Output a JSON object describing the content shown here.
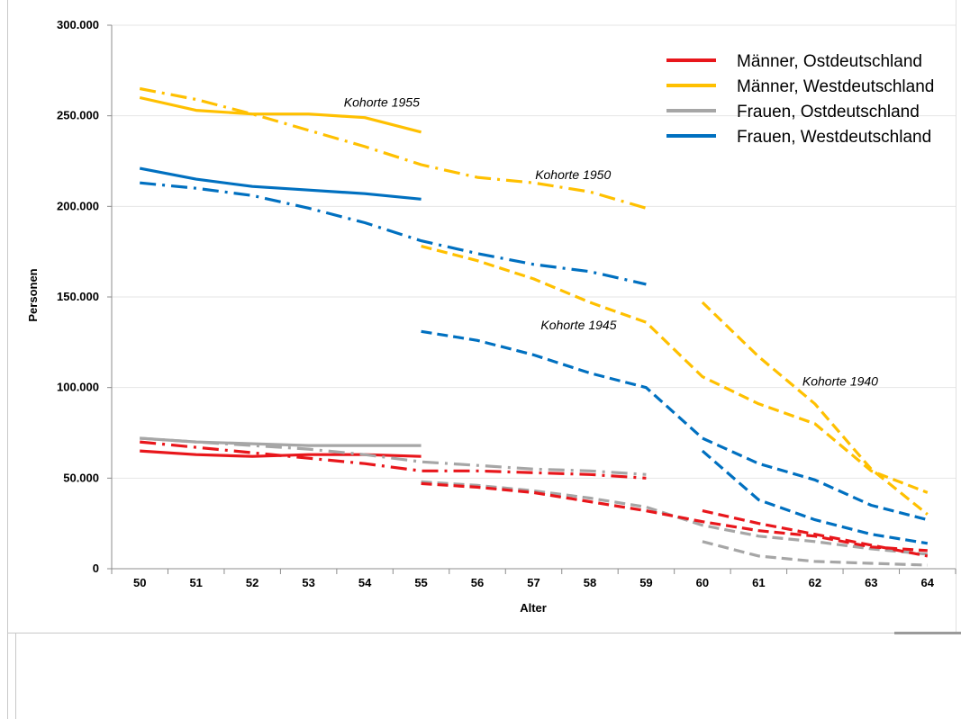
{
  "chart_data": {
    "type": "line",
    "title": "",
    "xlabel": "Alter",
    "ylabel": "Personen",
    "xlim": [
      50,
      64
    ],
    "ylim": [
      0,
      300000
    ],
    "categories": [
      50,
      51,
      52,
      53,
      54,
      55,
      56,
      57,
      58,
      59,
      60,
      61,
      62,
      63,
      64
    ],
    "y_ticks": [
      0,
      50000,
      100000,
      150000,
      200000,
      250000,
      300000
    ],
    "y_tick_labels": [
      "0",
      "50.000",
      "100.000",
      "150.000",
      "200.000",
      "250.000",
      "300.000"
    ],
    "grid": "horizontal",
    "legend_position": "top-right",
    "legend": [
      {
        "label": "Männer, Ostdeutschland",
        "color": "#e8161b"
      },
      {
        "label": "Männer, Westdeutschland",
        "color": "#ffc000"
      },
      {
        "label": "Frauen, Ostdeutschland",
        "color": "#a6a6a6"
      },
      {
        "label": "Frauen, Westdeutschland",
        "color": "#0070c0"
      }
    ],
    "annotations": [
      {
        "text": "Kohorte 1955",
        "x": 54.3,
        "y": 255000
      },
      {
        "text": "Kohorte 1950",
        "x": 57.7,
        "y": 215000
      },
      {
        "text": "Kohorte 1945",
        "x": 57.8,
        "y": 132000
      },
      {
        "text": "Kohorte 1940",
        "x": 62.45,
        "y": 101000
      }
    ],
    "series": [
      {
        "cohort": "Kohorte 1955",
        "group": "Männer, Westdeutschland",
        "color": "#ffc000",
        "dash": "solid",
        "x": [
          50,
          51,
          52,
          53,
          54,
          55
        ],
        "values": [
          260000,
          253000,
          251000,
          251000,
          249000,
          241000
        ]
      },
      {
        "cohort": "Kohorte 1955",
        "group": "Frauen, Westdeutschland",
        "color": "#0070c0",
        "dash": "solid",
        "x": [
          50,
          51,
          52,
          53,
          54,
          55
        ],
        "values": [
          221000,
          215000,
          211000,
          209000,
          207000,
          204000
        ]
      },
      {
        "cohort": "Kohorte 1955",
        "group": "Frauen, Ostdeutschland",
        "color": "#a6a6a6",
        "dash": "solid",
        "x": [
          50,
          51,
          52,
          53,
          54,
          55
        ],
        "values": [
          72000,
          70000,
          69000,
          68000,
          68000,
          68000
        ]
      },
      {
        "cohort": "Kohorte 1955",
        "group": "Männer, Ostdeutschland",
        "color": "#e8161b",
        "dash": "solid",
        "x": [
          50,
          51,
          52,
          53,
          54,
          55
        ],
        "values": [
          65000,
          63000,
          62000,
          63000,
          63000,
          62000
        ]
      },
      {
        "cohort": "Kohorte 1950",
        "group": "Männer, Westdeutschland",
        "color": "#ffc000",
        "dash": "dashdot",
        "x": [
          50,
          51,
          52,
          53,
          54,
          55,
          56,
          57,
          58,
          59
        ],
        "values": [
          265000,
          259000,
          251000,
          242000,
          233000,
          223000,
          216000,
          213000,
          208000,
          199000
        ]
      },
      {
        "cohort": "Kohorte 1950",
        "group": "Frauen, Westdeutschland",
        "color": "#0070c0",
        "dash": "dashdot",
        "x": [
          50,
          51,
          52,
          53,
          54,
          55,
          56,
          57,
          58,
          59
        ],
        "values": [
          213000,
          210000,
          206000,
          199000,
          191000,
          181000,
          174000,
          168000,
          164000,
          157000
        ]
      },
      {
        "cohort": "Kohorte 1950",
        "group": "Frauen, Ostdeutschland",
        "color": "#a6a6a6",
        "dash": "dashdot",
        "x": [
          50,
          51,
          52,
          53,
          54,
          55,
          56,
          57,
          58,
          59
        ],
        "values": [
          72000,
          70000,
          68000,
          66000,
          63000,
          59000,
          57000,
          55000,
          54000,
          52000
        ]
      },
      {
        "cohort": "Kohorte 1950",
        "group": "Männer, Ostdeutschland",
        "color": "#e8161b",
        "dash": "dashdot",
        "x": [
          50,
          51,
          52,
          53,
          54,
          55,
          56,
          57,
          58,
          59
        ],
        "values": [
          70000,
          67000,
          64000,
          61000,
          58000,
          54000,
          54000,
          53000,
          52000,
          50000
        ]
      },
      {
        "cohort": "Kohorte 1945",
        "group": "Männer, Westdeutschland",
        "color": "#ffc000",
        "dash": "dashed",
        "x": [
          55,
          56,
          57,
          58,
          59,
          60,
          61,
          62,
          63,
          64
        ],
        "values": [
          178000,
          170000,
          160000,
          147000,
          136000,
          106000,
          91000,
          80000,
          54000,
          42000
        ]
      },
      {
        "cohort": "Kohorte 1945",
        "group": "Frauen, Westdeutschland",
        "color": "#0070c0",
        "dash": "dashed",
        "x": [
          55,
          56,
          57,
          58,
          59,
          60,
          61,
          62,
          63,
          64
        ],
        "values": [
          131000,
          126000,
          118000,
          108000,
          100000,
          72000,
          58000,
          49000,
          35000,
          27000
        ]
      },
      {
        "cohort": "Kohorte 1945",
        "group": "Frauen, Ostdeutschland",
        "color": "#a6a6a6",
        "dash": "dashed",
        "x": [
          55,
          56,
          57,
          58,
          59,
          60,
          61,
          62,
          63,
          64
        ],
        "values": [
          48000,
          46000,
          43000,
          39000,
          34000,
          24000,
          18000,
          15000,
          11000,
          8000
        ]
      },
      {
        "cohort": "Kohorte 1945",
        "group": "Männer, Ostdeutschland",
        "color": "#e8161b",
        "dash": "dashed",
        "x": [
          55,
          56,
          57,
          58,
          59,
          60,
          61,
          62,
          63,
          64
        ],
        "values": [
          47000,
          45000,
          42000,
          37000,
          32000,
          26000,
          21000,
          18000,
          12000,
          10000
        ]
      },
      {
        "cohort": "Kohorte 1940",
        "group": "Männer, Westdeutschland",
        "color": "#ffc000",
        "dash": "dashed",
        "x": [
          60,
          61,
          62,
          63,
          64
        ],
        "values": [
          147000,
          117000,
          91000,
          55000,
          30000
        ]
      },
      {
        "cohort": "Kohorte 1940",
        "group": "Frauen, Westdeutschland",
        "color": "#0070c0",
        "dash": "dashed",
        "x": [
          60,
          61,
          62,
          63,
          64
        ],
        "values": [
          65000,
          38000,
          27000,
          19000,
          14000
        ]
      },
      {
        "cohort": "Kohorte 1940",
        "group": "Männer, Ostdeutschland",
        "color": "#e8161b",
        "dash": "dashed",
        "x": [
          60,
          61,
          62,
          63,
          64
        ],
        "values": [
          32000,
          25000,
          19000,
          13000,
          7000
        ]
      },
      {
        "cohort": "Kohorte 1940",
        "group": "Frauen, Ostdeutschland",
        "color": "#a6a6a6",
        "dash": "dashed",
        "x": [
          60,
          61,
          62,
          63,
          64
        ],
        "values": [
          15000,
          7000,
          4000,
          3000,
          2000
        ]
      }
    ]
  }
}
